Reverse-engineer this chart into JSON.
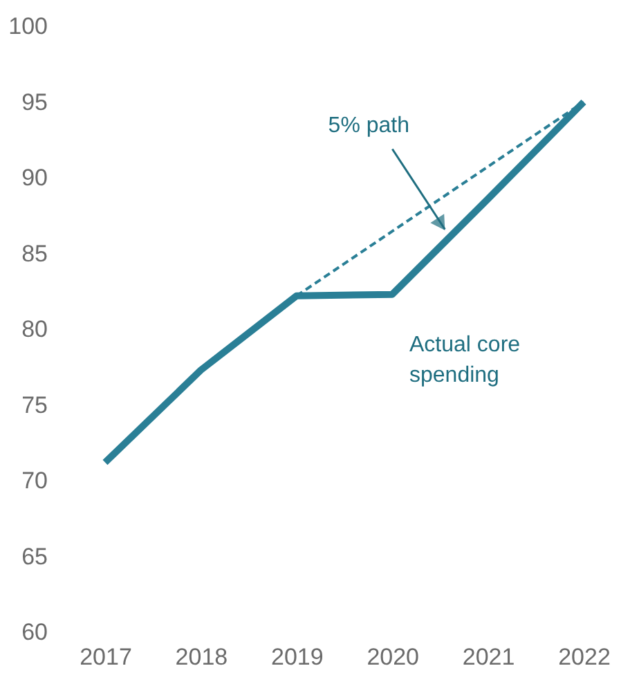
{
  "chart_data": {
    "type": "line",
    "x": [
      2017,
      2018,
      2019,
      2020,
      2021,
      2022
    ],
    "series": [
      {
        "color": "#2a7f96",
        "values": [
          71.2,
          77.3,
          82.2,
          82.3,
          88.6,
          95.0
        ],
        "line_style": "solid"
      },
      {
        "color": "#2a7f96",
        "x": [
          2019,
          2022
        ],
        "values": [
          82.2,
          95.0
        ],
        "line_style": "dashed"
      }
    ],
    "xlim": [
      2017,
      2022
    ],
    "grid": false,
    "marker": "none",
    "xticks": [
      2017,
      2018,
      2019,
      2020,
      2021,
      2022
    ],
    "ylim": [
      60,
      100
    ],
    "yticks": [
      60,
      65,
      70,
      75,
      80,
      85,
      90,
      95,
      100
    ],
    "annotations": [
      {
        "text": "5% path",
        "x": 2020.55,
        "y": 86.6
      },
      "Actual core\nspending"
    ]
  }
}
